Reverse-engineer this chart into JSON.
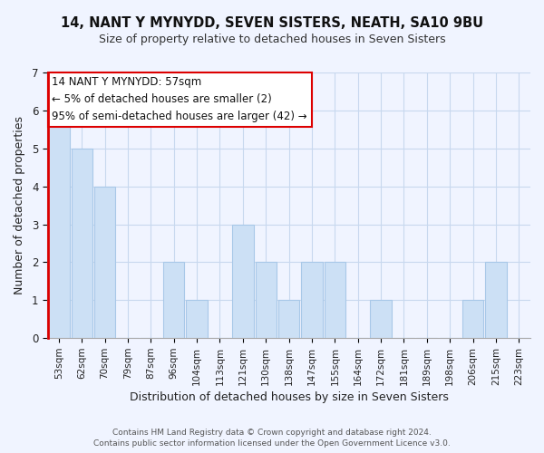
{
  "title": "14, NANT Y MYNYDD, SEVEN SISTERS, NEATH, SA10 9BU",
  "subtitle": "Size of property relative to detached houses in Seven Sisters",
  "xlabel": "Distribution of detached houses by size in Seven Sisters",
  "ylabel": "Number of detached properties",
  "bar_labels": [
    "53sqm",
    "62sqm",
    "70sqm",
    "79sqm",
    "87sqm",
    "96sqm",
    "104sqm",
    "113sqm",
    "121sqm",
    "130sqm",
    "138sqm",
    "147sqm",
    "155sqm",
    "164sqm",
    "172sqm",
    "181sqm",
    "189sqm",
    "198sqm",
    "206sqm",
    "215sqm",
    "223sqm"
  ],
  "bar_values": [
    6,
    5,
    4,
    0,
    0,
    2,
    1,
    0,
    3,
    2,
    1,
    2,
    2,
    0,
    1,
    0,
    0,
    0,
    1,
    2,
    0
  ],
  "bar_color": "#cce0f5",
  "bar_edge_color": "#a8c8e8",
  "highlight_color": "#dd0000",
  "ylim": [
    0,
    7
  ],
  "yticks": [
    0,
    1,
    2,
    3,
    4,
    5,
    6,
    7
  ],
  "annotation_title": "14 NANT Y MYNYDD: 57sqm",
  "annotation_line1": "← 5% of detached houses are smaller (2)",
  "annotation_line2": "95% of semi-detached houses are larger (42) →",
  "bg_color": "#f0f4ff",
  "footer1": "Contains HM Land Registry data © Crown copyright and database right 2024.",
  "footer2": "Contains public sector information licensed under the Open Government Licence v3.0.",
  "grid_color": "#c8d8ee",
  "title_fontsize": 10.5,
  "subtitle_fontsize": 9,
  "axis_label_fontsize": 9,
  "tick_fontsize": 7.5,
  "footer_fontsize": 6.5
}
